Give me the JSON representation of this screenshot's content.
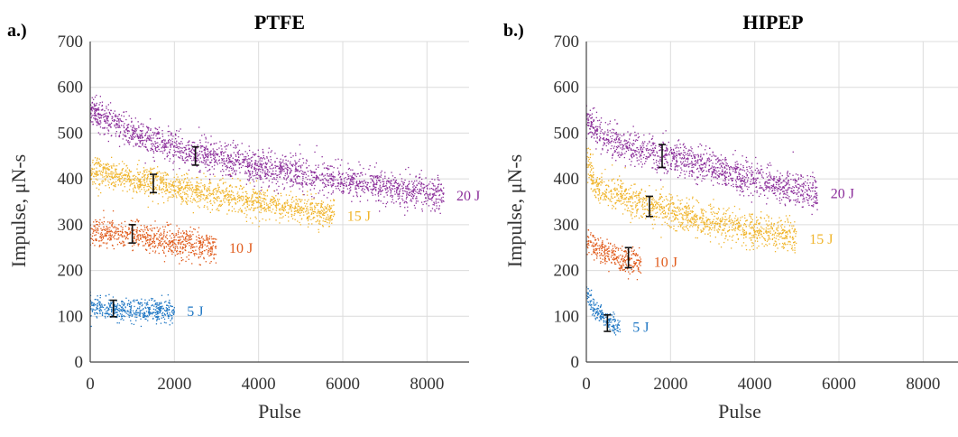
{
  "chart_data": [
    {
      "type": "scatter",
      "panel_label": "a.)",
      "title": "PTFE",
      "xlabel": "Pulse",
      "ylabel": "Impulse, μN-s",
      "xlim": [
        0,
        9000
      ],
      "ylim": [
        0,
        700
      ],
      "xticks": [
        0,
        2000,
        4000,
        6000,
        8000
      ],
      "yticks": [
        0,
        100,
        200,
        300,
        400,
        500,
        600,
        700
      ],
      "grid": true,
      "series": [
        {
          "name": "5 J",
          "color": "#1f77c4",
          "pulse_end": 2000,
          "trend": [
            [
              0,
              120
            ],
            [
              500,
              115
            ],
            [
              1000,
              113
            ],
            [
              2000,
              112
            ]
          ],
          "spread": 12,
          "error_bar": {
            "x": 550,
            "y": 117,
            "err": 18
          }
        },
        {
          "name": "10 J",
          "color": "#e05a1a",
          "pulse_end": 3000,
          "trend": [
            [
              0,
              285
            ],
            [
              1000,
              275
            ],
            [
              2000,
              262
            ],
            [
              3000,
              250
            ]
          ],
          "spread": 16,
          "error_bar": {
            "x": 1000,
            "y": 280,
            "err": 20
          }
        },
        {
          "name": "15 J",
          "color": "#f0b42a",
          "pulse_end": 5800,
          "trend": [
            [
              0,
              420
            ],
            [
              1500,
              390
            ],
            [
              3000,
              365
            ],
            [
              4500,
              342
            ],
            [
              5800,
              320
            ]
          ],
          "spread": 16,
          "error_bar": {
            "x": 1500,
            "y": 390,
            "err": 20
          }
        },
        {
          "name": "20 J",
          "color": "#8b2d9a",
          "pulse_end": 8400,
          "trend": [
            [
              0,
              550
            ],
            [
              1000,
              500
            ],
            [
              2500,
              455
            ],
            [
              4000,
              425
            ],
            [
              6000,
              395
            ],
            [
              8400,
              365
            ]
          ],
          "spread": 18,
          "error_bar": {
            "x": 2500,
            "y": 450,
            "err": 20
          }
        }
      ]
    },
    {
      "type": "scatter",
      "panel_label": "b.)",
      "title": "HIPEP",
      "xlabel": "Pulse",
      "ylabel": "Impulse, μN-s",
      "xlim": [
        0,
        9000
      ],
      "ylim": [
        0,
        700
      ],
      "xticks": [
        0,
        2000,
        4000,
        6000,
        8000
      ],
      "yticks": [
        0,
        100,
        200,
        300,
        400,
        500,
        600,
        700
      ],
      "grid": true,
      "series": [
        {
          "name": "5 J",
          "color": "#1f77c4",
          "pulse_end": 800,
          "trend": [
            [
              0,
              150
            ],
            [
              200,
              115
            ],
            [
              500,
              90
            ],
            [
              800,
              78
            ]
          ],
          "spread": 10,
          "error_bar": {
            "x": 500,
            "y": 85,
            "err": 18
          }
        },
        {
          "name": "10 J",
          "color": "#e05a1a",
          "pulse_end": 1300,
          "trend": [
            [
              0,
              265
            ],
            [
              400,
              240
            ],
            [
              800,
              225
            ],
            [
              1300,
              220
            ]
          ],
          "spread": 14,
          "error_bar": {
            "x": 1000,
            "y": 228,
            "err": 22
          }
        },
        {
          "name": "15 J",
          "color": "#f0b42a",
          "pulse_end": 5000,
          "trend": [
            [
              0,
              450
            ],
            [
              200,
              385
            ],
            [
              1500,
              340
            ],
            [
              3000,
              305
            ],
            [
              5000,
              270
            ]
          ],
          "spread": 18,
          "error_bar": {
            "x": 1500,
            "y": 340,
            "err": 22
          }
        },
        {
          "name": "20 J",
          "color": "#8b2d9a",
          "pulse_end": 5500,
          "trend": [
            [
              0,
              530
            ],
            [
              300,
              490
            ],
            [
              1800,
              450
            ],
            [
              4000,
              400
            ],
            [
              5500,
              370
            ]
          ],
          "spread": 18,
          "error_bar": {
            "x": 1800,
            "y": 450,
            "err": 25
          }
        }
      ]
    }
  ]
}
